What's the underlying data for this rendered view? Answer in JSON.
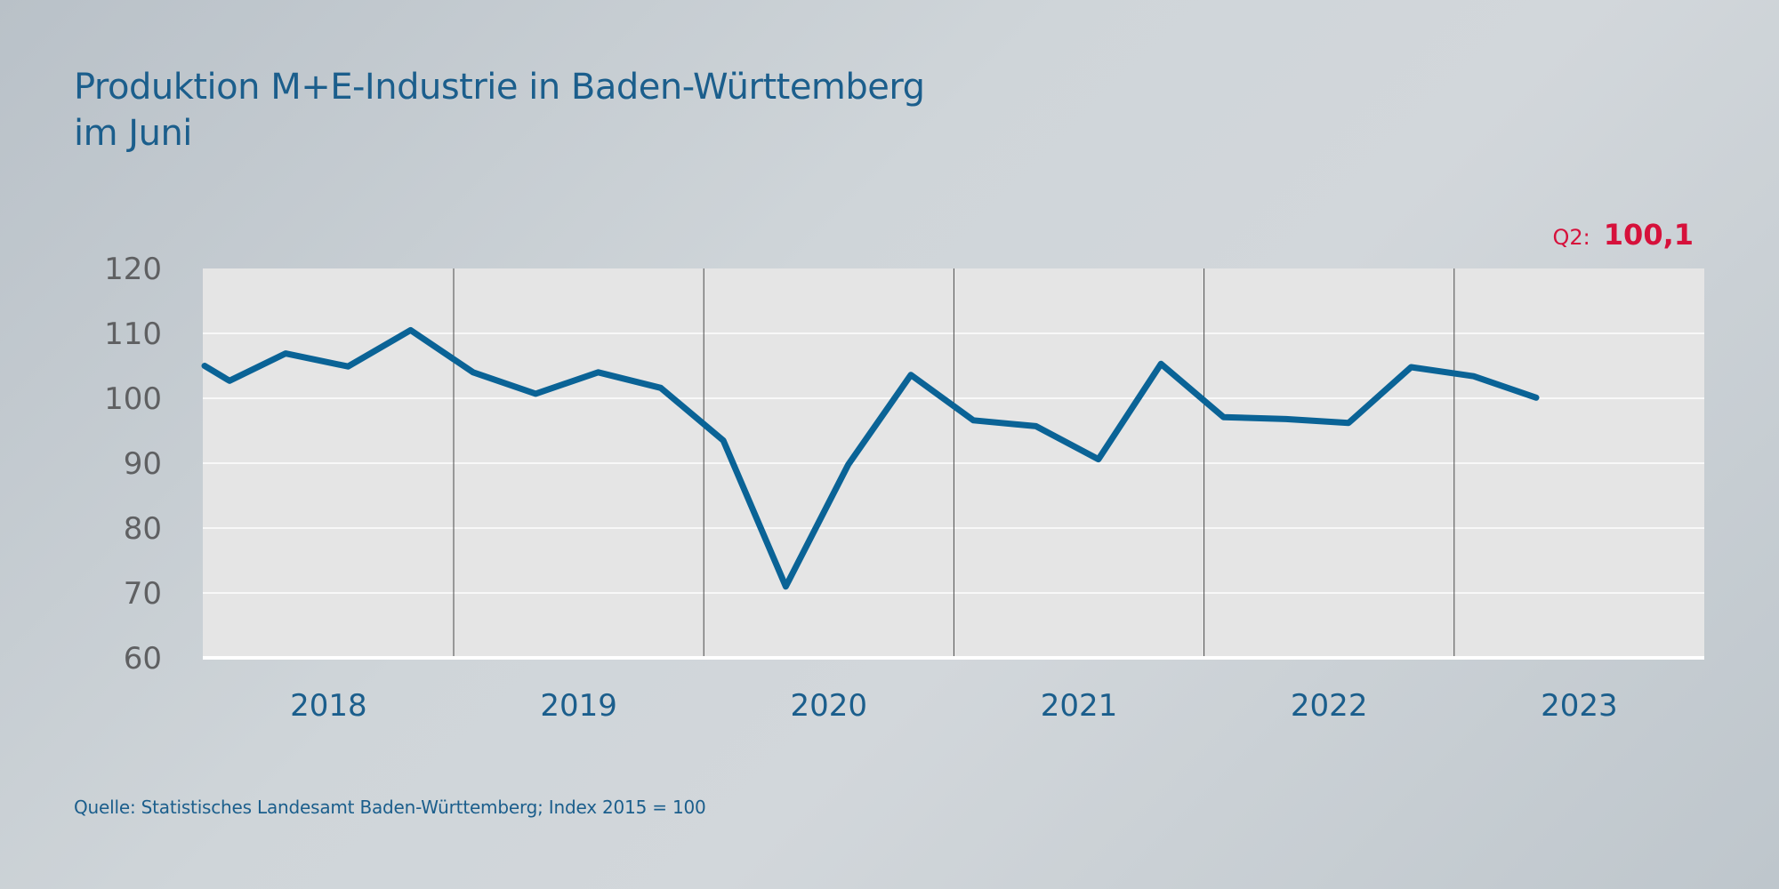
{
  "title_line1": "Produktion M+E-Industrie in Baden-Württemberg",
  "title_line2": "im Juni",
  "source": "Quelle: Statistisches Landesamt Baden-Württemberg; Index 2015 = 100",
  "colors": {
    "line": "#0a6396",
    "accent": "#d6113b",
    "text": "#1b5e8c",
    "plot_bg": "#e5e5e5"
  },
  "chart_data": {
    "type": "line",
    "ylim": [
      60,
      120
    ],
    "yticks": [
      "60",
      "70",
      "80",
      "90",
      "100",
      "110",
      "120"
    ],
    "grid": true,
    "categories": [
      "2018",
      "2019",
      "2020",
      "2021",
      "2022",
      "2023"
    ],
    "x": [
      "2018 Q1",
      "2018 Q1",
      "2018 Q2",
      "2018 Q3",
      "2018 Q4",
      "2019 Q1",
      "2019 Q2",
      "2019 Q3",
      "2019 Q4",
      "2020 Q1",
      "2020 Q2",
      "2020 Q3",
      "2020 Q4",
      "2021 Q1",
      "2021 Q2",
      "2021 Q3",
      "2021 Q4",
      "2022 Q1",
      "2022 Q2",
      "2022 Q3",
      "2022 Q4",
      "2023 Q1",
      "2023 Q2"
    ],
    "values": [
      105,
      102.7,
      106.9,
      104.9,
      110.5,
      104,
      100.7,
      104,
      101.6,
      93.5,
      71,
      89.8,
      103.6,
      96.6,
      95.7,
      90.6,
      105.3,
      97.1,
      96.8,
      96.2,
      104.8,
      103.4,
      100.1
    ],
    "annotation": {
      "prefix": "Q2:",
      "value": "100,1"
    }
  }
}
